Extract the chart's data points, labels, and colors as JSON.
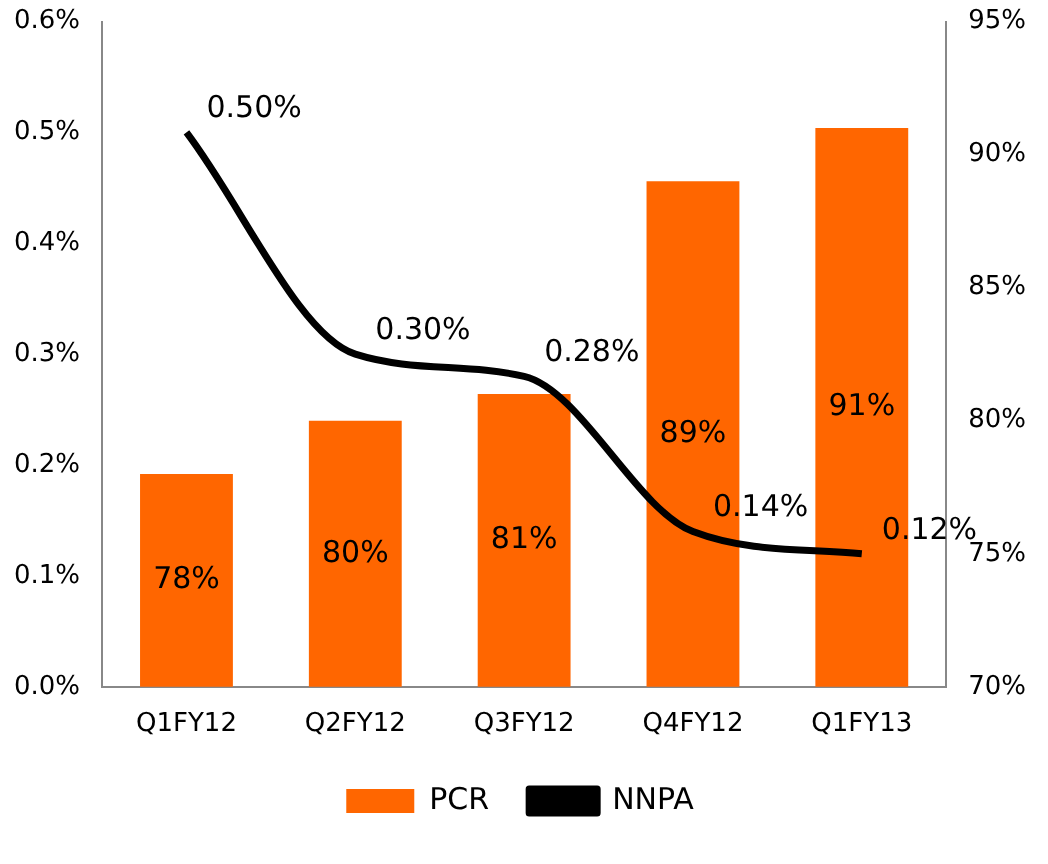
{
  "chart_data": {
    "type": "bar",
    "categories": [
      "Q1FY12",
      "Q2FY12",
      "Q3FY12",
      "Q4FY12",
      "Q1FY13"
    ],
    "series": [
      {
        "name": "PCR",
        "axis": "y2",
        "color": "#ff6600",
        "values": [
          78,
          80,
          81,
          89,
          91
        ],
        "value_labels": [
          "78%",
          "80%",
          "81%",
          "89%",
          "91%"
        ]
      },
      {
        "name": "NNPA",
        "type": "line",
        "axis": "y",
        "color": "#000000",
        "values": [
          0.5,
          0.3,
          0.28,
          0.14,
          0.12
        ],
        "value_labels": [
          "0.50%",
          "0.30%",
          "0.28%",
          "0.14%",
          "0.12%"
        ]
      }
    ],
    "ylim": [
      0,
      0.6
    ],
    "yticks": [
      {
        "value": 0,
        "label": "0.0%"
      },
      {
        "value": 0.1,
        "label": "0.1%"
      },
      {
        "value": 0.2,
        "label": "0.2%"
      },
      {
        "value": 0.3,
        "label": "0.3%"
      },
      {
        "value": 0.4,
        "label": "0.4%"
      },
      {
        "value": 0.5,
        "label": "0.5%"
      },
      {
        "value": 0.6,
        "label": "0.6%"
      }
    ],
    "y2lim": [
      70,
      95
    ],
    "y2ticks": [
      {
        "value": 70,
        "label": "70%"
      },
      {
        "value": 75,
        "label": "75%"
      },
      {
        "value": 80,
        "label": "80%"
      },
      {
        "value": 85,
        "label": "85%"
      },
      {
        "value": 90,
        "label": "90%"
      },
      {
        "value": 95,
        "label": "95%"
      }
    ],
    "grid": false,
    "legend": "bottom",
    "marker": "none",
    "line_style": "solid"
  }
}
